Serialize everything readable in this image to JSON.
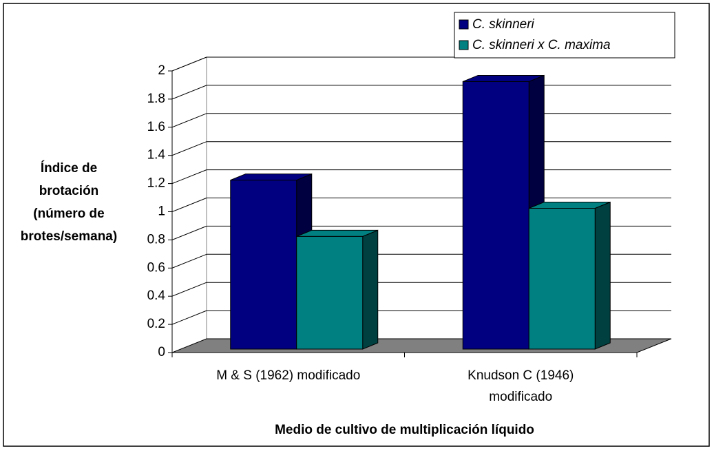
{
  "chart_data": {
    "type": "bar3d",
    "x_label": "Medio de cultivo de multiplicación líquido",
    "y_label": "Índice de brotación (número de brotes/semana)",
    "categories": [
      "M & S (1962) modificado",
      "Knudson C (1946) modificado"
    ],
    "series": [
      {
        "name": "C. skinneri",
        "color": "#000080",
        "side_color": "#000040",
        "values": [
          1.2,
          1.9
        ]
      },
      {
        "name": "C. skinneri x C. maxima",
        "color": "#008080",
        "side_color": "#004040",
        "values": [
          0.8,
          1.0
        ]
      }
    ],
    "ylim": [
      0,
      2
    ],
    "yticks": [
      0,
      0.2,
      0.4,
      0.6,
      0.8,
      1,
      1.2,
      1.4,
      1.6,
      1.8,
      2
    ],
    "grid": true,
    "floor_color": "#808080",
    "legend": "upper right"
  }
}
